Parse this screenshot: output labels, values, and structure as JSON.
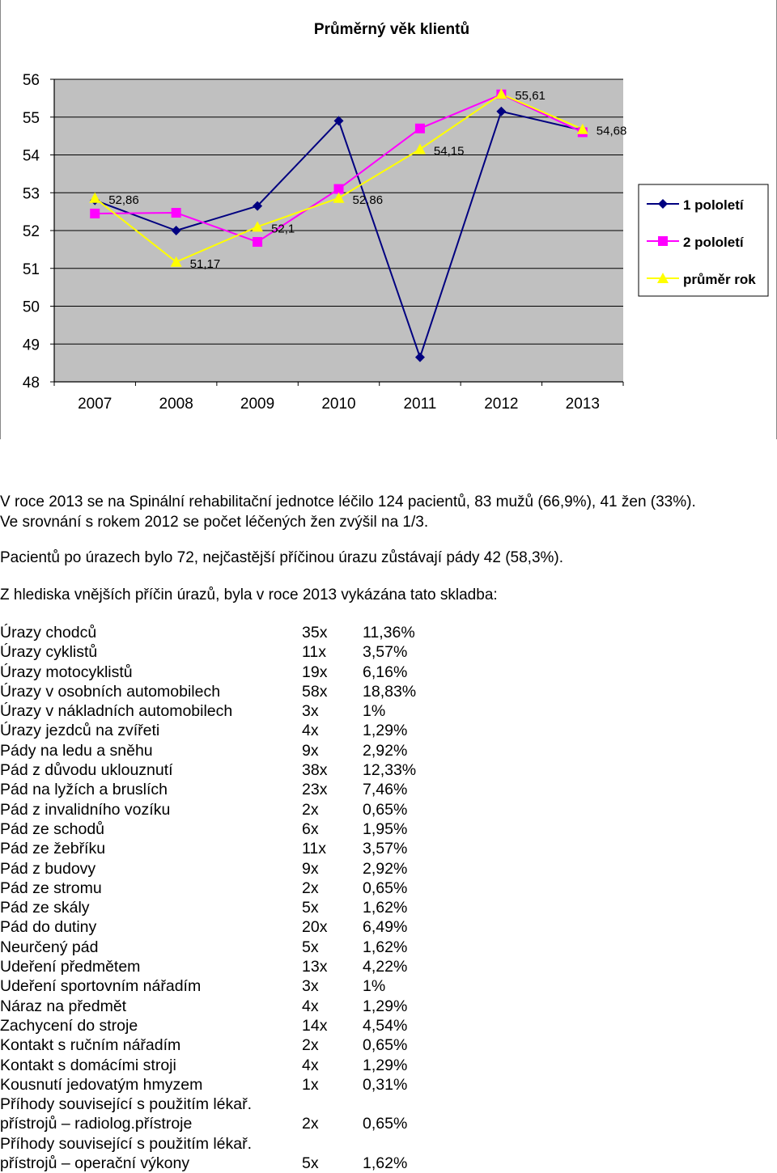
{
  "chart_data": {
    "type": "line",
    "title": "Průměrný věk klientů",
    "categories": [
      "2007",
      "2008",
      "2009",
      "2010",
      "2011",
      "2012",
      "2013"
    ],
    "ylim": [
      48,
      56
    ],
    "yticks": [
      "48",
      "49",
      "50",
      "51",
      "52",
      "53",
      "54",
      "55",
      "56"
    ],
    "grid": true,
    "legend_position": "right",
    "series": [
      {
        "name": "1 pololetí",
        "color": "#000080",
        "marker": "diamond",
        "values": [
          52.8,
          52.0,
          52.65,
          54.9,
          48.65,
          55.15,
          54.65
        ]
      },
      {
        "name": "2 pololetí",
        "color": "#FF00FF",
        "marker": "square",
        "values": [
          52.45,
          52.47,
          51.7,
          53.1,
          54.7,
          55.6,
          54.6
        ]
      },
      {
        "name": "průměr rok",
        "color": "#FFFF00",
        "marker": "triangle",
        "values": [
          52.86,
          51.17,
          52.1,
          52.86,
          54.15,
          55.61,
          54.68
        ]
      }
    ],
    "data_labels": [
      "52,86",
      "51,17",
      "52,1",
      "52,86",
      "54,15",
      "55,61",
      "54,68"
    ]
  },
  "text": {
    "para1_line1": "V roce 2013 se na Spinální rehabilitační jednotce léčilo 124 pacientů, 83 mužů (66,9%), 41 žen (33%).",
    "para1_line2": "Ve srovnání s rokem 2012 se počet léčených žen zvýšil na 1/3.",
    "para2": "Pacientů po úrazech bylo 72, nejčastější příčinou úrazu zůstávají pády 42 (58,3%).",
    "para3": "Z hlediska vnějších příčin úrazů, byla v roce 2013 vykázána tato skladba:"
  },
  "injuries": [
    {
      "name": "Úrazy chodců",
      "count": "35x",
      "pct": "11,36%"
    },
    {
      "name": "Úrazy cyklistů",
      "count": "11x",
      "pct": "3,57%"
    },
    {
      "name": "Úrazy motocyklistů",
      "count": "19x",
      "pct": "6,16%"
    },
    {
      "name": "Úrazy v osobních automobilech",
      "count": "58x",
      "pct": "18,83%"
    },
    {
      "name": "Úrazy v nákladních automobilech",
      "count": "3x",
      "pct": "1%"
    },
    {
      "name": "Úrazy jezdců na zvířeti",
      "count": "4x",
      "pct": "1,29%"
    },
    {
      "name": "Pády na ledu a sněhu",
      "count": "9x",
      "pct": "2,92%"
    },
    {
      "name": "Pád z důvodu uklouznutí",
      "count": "38x",
      "pct": "12,33%"
    },
    {
      "name": "Pád na lyžích a bruslích",
      "count": "23x",
      "pct": "7,46%"
    },
    {
      "name": "Pád z invalidního vozíku",
      "count": "2x",
      "pct": "0,65%"
    },
    {
      "name": "Pád ze schodů",
      "count": "6x",
      "pct": "1,95%"
    },
    {
      "name": "Pád ze žebříku",
      "count": "11x",
      "pct": "3,57%"
    },
    {
      "name": "Pád z budovy",
      "count": "9x",
      "pct": "2,92%"
    },
    {
      "name": "Pád ze stromu",
      "count": "2x",
      "pct": "0,65%"
    },
    {
      "name": "Pád ze skály",
      "count": "5x",
      "pct": "1,62%"
    },
    {
      "name": "Pád do dutiny",
      "count": "20x",
      "pct": "6,49%"
    },
    {
      "name": "Neurčený pád",
      "count": "5x",
      "pct": "1,62%"
    },
    {
      "name": "Udeření předmětem",
      "count": "13x",
      "pct": "4,22%"
    },
    {
      "name": "Udeření sportovním nářadím",
      "count": "3x",
      "pct": "1%"
    },
    {
      "name": "Náraz na předmět",
      "count": "4x",
      "pct": "1,29%"
    },
    {
      "name": "Zachycení do stroje",
      "count": "14x",
      "pct": "4,54%"
    },
    {
      "name": "Kontakt s ručním nářadím",
      "count": "2x",
      "pct": "0,65%"
    },
    {
      "name": "Kontakt s domácími stroji",
      "count": "4x",
      "pct": "1,29%"
    },
    {
      "name": "Kousnutí jedovatým hmyzem",
      "count": "1x",
      "pct": "0,31%"
    },
    {
      "name": "Příhody související s použitím lékař.",
      "count": "",
      "pct": ""
    },
    {
      "name": "přístrojů – radiolog.přístroje",
      "count": "2x",
      "pct": "0,65%"
    },
    {
      "name": "Příhody související s použitím lékař.",
      "count": "",
      "pct": ""
    },
    {
      "name": "přístrojů – operační výkony",
      "count": "5x",
      "pct": "1,62%"
    }
  ]
}
